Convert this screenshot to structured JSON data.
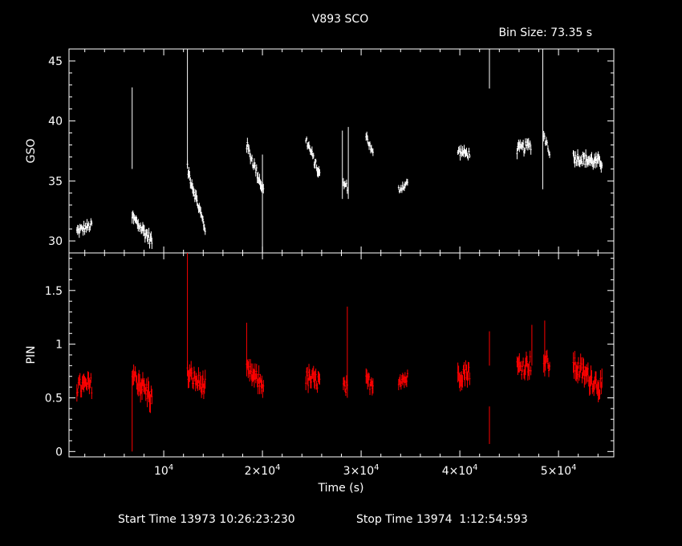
{
  "header": {
    "title": "V893 SCO",
    "bin_size": "Bin Size: 73.35 s"
  },
  "footer": {
    "start_time": "Start Time 13973 10:26:23:230",
    "stop_time": "Stop Time 13974  1:12:54:593"
  },
  "colors": {
    "background": "#000000",
    "axes": "#ffffff",
    "gso_series": "#ffffff",
    "pin_series": "#ff0000"
  },
  "chart_data": [
    {
      "type": "scatter",
      "panel": "top",
      "ylabel": "GSO",
      "xlim": [
        400,
        55600
      ],
      "ylim": [
        29,
        46
      ],
      "x_ticks": [
        10000,
        20000,
        30000,
        40000,
        50000
      ],
      "y_ticks": [
        30,
        35,
        40,
        45
      ],
      "series": [
        {
          "color": "#ffffff",
          "segments": [
            {
              "x0": 1200,
              "x1": 2700,
              "y0": 30.8,
              "y1": 31.3,
              "spread": 0.7
            },
            {
              "x0": 6800,
              "x1": 8800,
              "y0": 32.0,
              "y1": 30.0,
              "spread": 0.9
            },
            {
              "x0": 12400,
              "x1": 14200,
              "y0": 36.0,
              "y1": 31.0,
              "spread": 0.8
            },
            {
              "x0": 18400,
              "x1": 20100,
              "y0": 38.0,
              "y1": 34.2,
              "spread": 0.8
            },
            {
              "x0": 24400,
              "x1": 25800,
              "y0": 38.5,
              "y1": 35.5,
              "spread": 0.7
            },
            {
              "x0": 28200,
              "x1": 28600,
              "y0": 34.8,
              "y1": 34.5,
              "spread": 0.6
            },
            {
              "x0": 30500,
              "x1": 31200,
              "y0": 38.8,
              "y1": 37.2,
              "spread": 0.6
            },
            {
              "x0": 33800,
              "x1": 34700,
              "y0": 34.3,
              "y1": 34.8,
              "spread": 0.6
            },
            {
              "x0": 39800,
              "x1": 41000,
              "y0": 37.5,
              "y1": 37.2,
              "spread": 0.7
            },
            {
              "x0": 45800,
              "x1": 47200,
              "y0": 37.6,
              "y1": 38.0,
              "spread": 0.8
            },
            {
              "x0": 48500,
              "x1": 49100,
              "y0": 38.8,
              "y1": 37.5,
              "spread": 0.8
            },
            {
              "x0": 51500,
              "x1": 54400,
              "y0": 37.0,
              "y1": 36.5,
              "spread": 0.9
            }
          ],
          "spikes": [
            {
              "x": 6800,
              "y0": 36.0,
              "y1": 42.8
            },
            {
              "x": 12400,
              "y0": 36.0,
              "y1": 46.0
            },
            {
              "x": 20000,
              "y0": 29.0,
              "y1": 37.2
            },
            {
              "x": 28100,
              "y0": 33.5,
              "y1": 39.2
            },
            {
              "x": 28700,
              "y0": 33.5,
              "y1": 39.5
            },
            {
              "x": 43000,
              "y0": 42.7,
              "y1": 46.0
            },
            {
              "x": 48400,
              "y0": 34.3,
              "y1": 46.0
            }
          ]
        }
      ]
    },
    {
      "type": "scatter",
      "panel": "bottom",
      "ylabel": "PIN",
      "xlabel": "Time (s)",
      "xlim": [
        400,
        55600
      ],
      "ylim": [
        -0.05,
        1.85
      ],
      "x_ticks": [
        10000,
        20000,
        30000,
        40000,
        50000
      ],
      "x_tick_labels": [
        {
          "mant": "10",
          "exp": "4",
          "coef": ""
        },
        {
          "mant": "10",
          "exp": "4",
          "coef": "2×"
        },
        {
          "mant": "10",
          "exp": "4",
          "coef": "3×"
        },
        {
          "mant": "10",
          "exp": "4",
          "coef": "4×"
        },
        {
          "mant": "10",
          "exp": "4",
          "coef": "5×"
        }
      ],
      "y_ticks": [
        0,
        0.5,
        1,
        1.5
      ],
      "series": [
        {
          "color": "#ff0000",
          "segments": [
            {
              "x0": 1200,
              "x1": 2700,
              "y0": 0.6,
              "y1": 0.62,
              "spread": 0.15
            },
            {
              "x0": 6800,
              "x1": 8800,
              "y0": 0.72,
              "y1": 0.5,
              "spread": 0.18
            },
            {
              "x0": 12400,
              "x1": 14200,
              "y0": 0.72,
              "y1": 0.6,
              "spread": 0.15
            },
            {
              "x0": 18400,
              "x1": 20100,
              "y0": 0.75,
              "y1": 0.62,
              "spread": 0.15
            },
            {
              "x0": 24400,
              "x1": 25800,
              "y0": 0.68,
              "y1": 0.65,
              "spread": 0.15
            },
            {
              "x0": 28200,
              "x1": 28600,
              "y0": 0.6,
              "y1": 0.58,
              "spread": 0.13
            },
            {
              "x0": 30500,
              "x1": 31200,
              "y0": 0.65,
              "y1": 0.64,
              "spread": 0.13
            },
            {
              "x0": 33800,
              "x1": 34700,
              "y0": 0.67,
              "y1": 0.68,
              "spread": 0.12
            },
            {
              "x0": 39800,
              "x1": 41000,
              "y0": 0.72,
              "y1": 0.75,
              "spread": 0.16
            },
            {
              "x0": 45800,
              "x1": 47200,
              "y0": 0.78,
              "y1": 0.82,
              "spread": 0.16
            },
            {
              "x0": 48500,
              "x1": 49100,
              "y0": 0.85,
              "y1": 0.8,
              "spread": 0.15
            },
            {
              "x0": 51500,
              "x1": 54400,
              "y0": 0.8,
              "y1": 0.6,
              "spread": 0.17
            }
          ],
          "spikes": [
            {
              "x": 6800,
              "y0": 0.0,
              "y1": 0.65
            },
            {
              "x": 12400,
              "y0": 0.7,
              "y1": 1.85
            },
            {
              "x": 18400,
              "y0": 0.7,
              "y1": 1.2
            },
            {
              "x": 28600,
              "y0": 0.5,
              "y1": 1.35
            },
            {
              "x": 43000,
              "y0": 0.07,
              "y1": 0.42
            },
            {
              "x": 43000,
              "y0": 0.8,
              "y1": 1.12
            },
            {
              "x": 47300,
              "y0": 0.8,
              "y1": 1.18
            },
            {
              "x": 48600,
              "y0": 0.7,
              "y1": 1.22
            }
          ]
        }
      ]
    }
  ]
}
